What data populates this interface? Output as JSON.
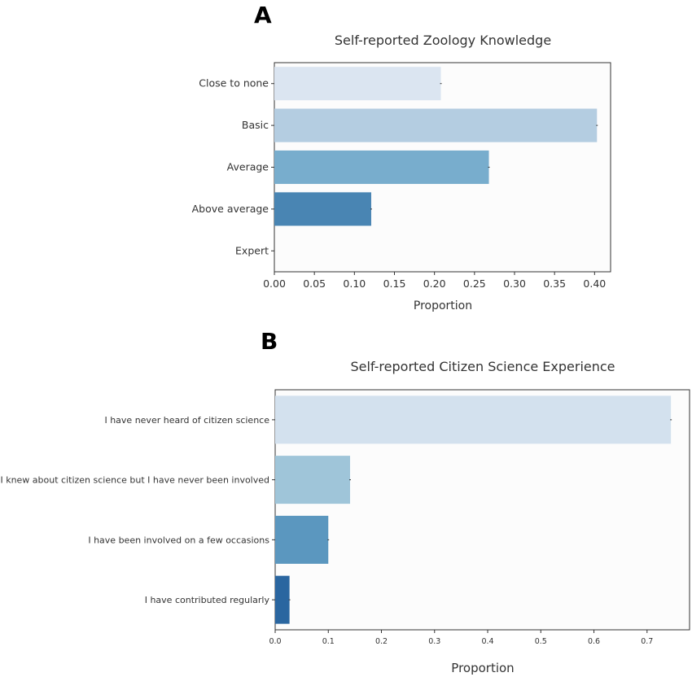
{
  "panels": {
    "a_letter": "A",
    "b_letter": "B"
  },
  "chart_data": [
    {
      "type": "bar",
      "orientation": "horizontal",
      "title": "Self-reported Zoology Knowledge",
      "xlabel": "Proportion",
      "ylabel": "",
      "categories": [
        "Close to none",
        "Basic",
        "Average",
        "Above average",
        "Expert"
      ],
      "values": [
        0.208,
        0.403,
        0.268,
        0.121,
        0.0
      ],
      "colors": [
        "#dbe5f1",
        "#b4cde1",
        "#78adcd",
        "#4985b3",
        "#2a5f96"
      ],
      "xlim": [
        0.0,
        0.42
      ],
      "xticks": [
        "0.00",
        "0.05",
        "0.10",
        "0.15",
        "0.20",
        "0.25",
        "0.30",
        "0.35",
        "0.40"
      ],
      "grid": false
    },
    {
      "type": "bar",
      "orientation": "horizontal",
      "title": "Self-reported Citizen Science Experience",
      "xlabel": "Proportion",
      "ylabel": "",
      "categories": [
        "I have never heard of citizen science",
        "I knew about citizen science but I have never been involved",
        "I have been involved on a few occasions",
        "I have contributed regularly"
      ],
      "values": [
        0.745,
        0.141,
        0.1,
        0.027
      ],
      "colors": [
        "#d3e1ee",
        "#9fc5d9",
        "#5b97bf",
        "#2a66a0"
      ],
      "xlim": [
        0.0,
        0.78
      ],
      "xticks": [
        "0.0",
        "0.1",
        "0.2",
        "0.3",
        "0.4",
        "0.5",
        "0.6",
        "0.7"
      ],
      "grid": false
    }
  ]
}
